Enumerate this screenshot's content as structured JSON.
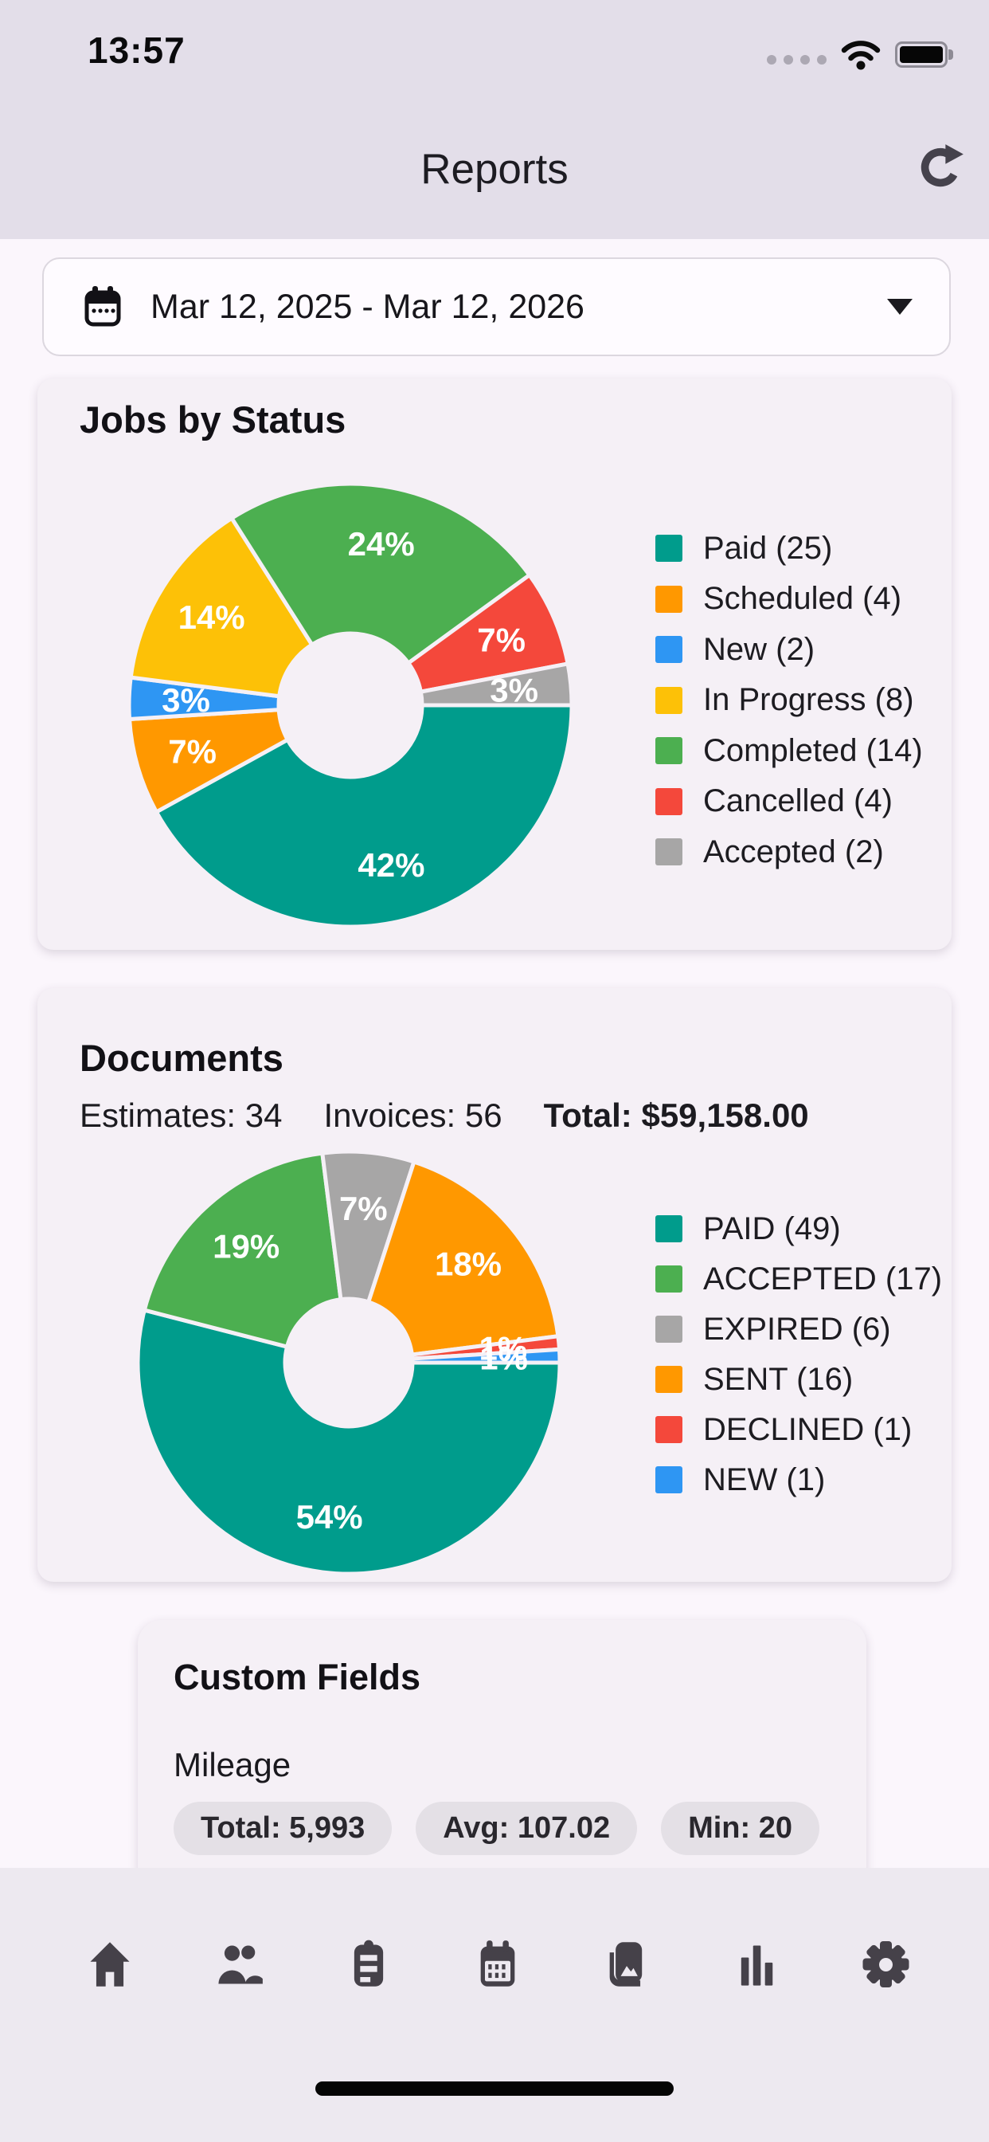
{
  "status_bar": {
    "time": "13:57",
    "cellular_icon": "cellular-dots-icon",
    "wifi_icon": "wifi-icon",
    "battery_icon": "battery-full-icon"
  },
  "header": {
    "title": "Reports",
    "refresh_icon": "refresh-icon"
  },
  "date_filter": {
    "label": "Mar 12, 2025 - Mar 12, 2026",
    "icon": "calendar-icon",
    "caret_icon": "chevron-down-icon"
  },
  "chart_data": [
    {
      "type": "pie",
      "title": "Jobs by Status",
      "donut": true,
      "start_angle_deg": 0,
      "direction": "clockwise",
      "legend_position": "right",
      "categories": [
        "Paid",
        "Scheduled",
        "New",
        "In Progress",
        "Completed",
        "Cancelled",
        "Accepted"
      ],
      "values": [
        25,
        4,
        2,
        8,
        14,
        4,
        2
      ],
      "percents": [
        42,
        7,
        3,
        14,
        24,
        7,
        3
      ],
      "percent_labels": [
        "42%",
        "7%",
        "3%",
        "14%",
        "24%",
        "7%",
        "3%"
      ],
      "colors": [
        "#009C8C",
        "#FF9800",
        "#2E96F3",
        "#FDC107",
        "#4CAF50",
        "#F4483B",
        "#A7A6A6"
      ],
      "legend": [
        "Paid (25)",
        "Scheduled (4)",
        "New (2)",
        "In Progress (8)",
        "Completed (14)",
        "Cancelled (4)",
        "Accepted (2)"
      ]
    },
    {
      "type": "pie",
      "title": "Documents",
      "donut": true,
      "start_angle_deg": 0,
      "direction": "clockwise",
      "legend_position": "right",
      "categories": [
        "PAID",
        "ACCEPTED",
        "EXPIRED",
        "SENT",
        "DECLINED",
        "NEW"
      ],
      "values": [
        49,
        17,
        6,
        16,
        1,
        1
      ],
      "percents": [
        54,
        19,
        7,
        18,
        1,
        1
      ],
      "percent_labels": [
        "54%",
        "19%",
        "7%",
        "18%",
        "1%",
        "1%"
      ],
      "colors": [
        "#009C8C",
        "#4CAF50",
        "#A7A6A6",
        "#FF9800",
        "#F4483B",
        "#2E96F3"
      ],
      "legend": [
        "PAID (49)",
        "ACCEPTED (17)",
        "EXPIRED (6)",
        "SENT (16)",
        "DECLINED (1)",
        "NEW (1)"
      ]
    }
  ],
  "documents": {
    "stats": [
      {
        "text": "Estimates: 34",
        "bold": false
      },
      {
        "text": "Invoices: 56",
        "bold": false
      },
      {
        "text": "Total: $59,158.00",
        "bold": true
      }
    ]
  },
  "custom_fields": {
    "title": "Custom Fields",
    "field": "Mileage",
    "chips": [
      {
        "label": "Total: 5,993"
      },
      {
        "label": "Avg: 107.02"
      },
      {
        "label": "Min: 20"
      }
    ]
  },
  "tab_bar": {
    "items": [
      {
        "id": "home",
        "icon": "home-icon"
      },
      {
        "id": "clients",
        "icon": "people-icon"
      },
      {
        "id": "jobs",
        "icon": "clipboard-icon"
      },
      {
        "id": "schedule",
        "icon": "calendar-grid-icon"
      },
      {
        "id": "gallery",
        "icon": "photos-icon"
      },
      {
        "id": "reports",
        "icon": "bar-chart-icon"
      },
      {
        "id": "settings",
        "icon": "gear-icon"
      }
    ]
  },
  "colors": {
    "header_bg": "#E3DEE9",
    "page_bg": "#FBF6FC",
    "card_bg": "#F5F0F6",
    "tabbar_bg": "#EDE9F0",
    "chip_bg": "#E4E0E6",
    "icon_gray": "#454149",
    "teal": "#009C8C",
    "green": "#4CAF50",
    "orange": "#FF9800",
    "amber": "#FDC107",
    "blue": "#2E96F3",
    "red": "#F4483B",
    "gray": "#A7A6A6"
  }
}
